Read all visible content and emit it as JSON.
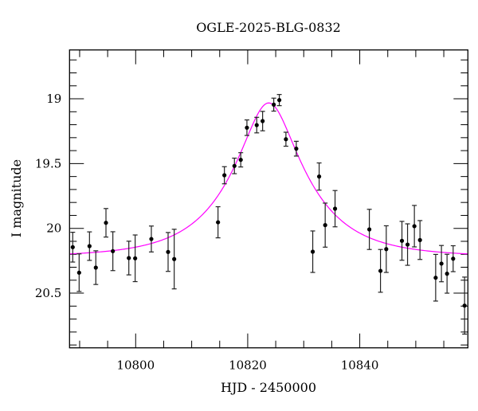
{
  "chart_data": {
    "type": "scatter",
    "title": "OGLE-2025-BLG-0832",
    "xlabel": "HJD - 2450000",
    "ylabel": "I magnitude",
    "xlim": [
      10788.2,
      10859.3
    ],
    "ylim": [
      20.922,
      18.623
    ],
    "y_inverted": true,
    "x_major_ticks": [
      10800,
      10820,
      10840
    ],
    "x_tick_labels": [
      "10800",
      "10820",
      "10840"
    ],
    "x_minor_step": 5,
    "y_major_ticks": [
      19,
      19.5,
      20,
      20.5
    ],
    "y_tick_labels": [
      "19",
      "19.5",
      "20",
      "20.5"
    ],
    "y_minor_step": 0.1,
    "grid": false,
    "colors": {
      "points": "#000000",
      "model": "#ff00ff"
    },
    "series": [
      {
        "name": "data",
        "kind": "points-with-errorbars",
        "t": [
          10788.77,
          10789.91,
          10791.76,
          10792.89,
          10794.7,
          10795.93,
          10798.78,
          10799.91,
          10802.8,
          10805.79,
          10806.88,
          10814.7,
          10815.84,
          10817.63,
          10818.76,
          10819.86,
          10821.61,
          10822.66,
          10824.65,
          10825.64,
          10826.82,
          10828.67,
          10831.61,
          10832.75,
          10833.83,
          10835.59,
          10841.71,
          10843.7,
          10844.73,
          10847.53,
          10848.53,
          10849.75,
          10850.75,
          10853.55,
          10854.58,
          10855.58,
          10856.67,
          10858.71
        ],
        "mag": [
          20.145,
          20.342,
          20.137,
          20.303,
          19.957,
          20.176,
          20.229,
          20.231,
          20.082,
          20.182,
          20.237,
          19.953,
          19.59,
          19.518,
          19.471,
          19.223,
          19.203,
          19.172,
          19.045,
          19.01,
          19.312,
          19.385,
          20.18,
          19.6,
          19.975,
          19.848,
          20.008,
          20.328,
          20.16,
          20.096,
          20.125,
          19.983,
          20.09,
          20.381,
          20.272,
          20.35,
          20.234,
          20.596
        ],
        "err": [
          0.115,
          0.145,
          0.11,
          0.13,
          0.11,
          0.15,
          0.13,
          0.18,
          0.1,
          0.15,
          0.23,
          0.12,
          0.066,
          0.06,
          0.055,
          0.06,
          0.06,
          0.075,
          0.05,
          0.043,
          0.054,
          0.057,
          0.16,
          0.105,
          0.17,
          0.14,
          0.155,
          0.165,
          0.18,
          0.15,
          0.16,
          0.16,
          0.15,
          0.18,
          0.14,
          0.15,
          0.1,
          0.22
        ]
      },
      {
        "name": "model",
        "kind": "paczynski-curve",
        "t0": 10823.75,
        "u0": 0.35,
        "tE": 12.8,
        "baseline_mag": 20.22
      }
    ]
  }
}
